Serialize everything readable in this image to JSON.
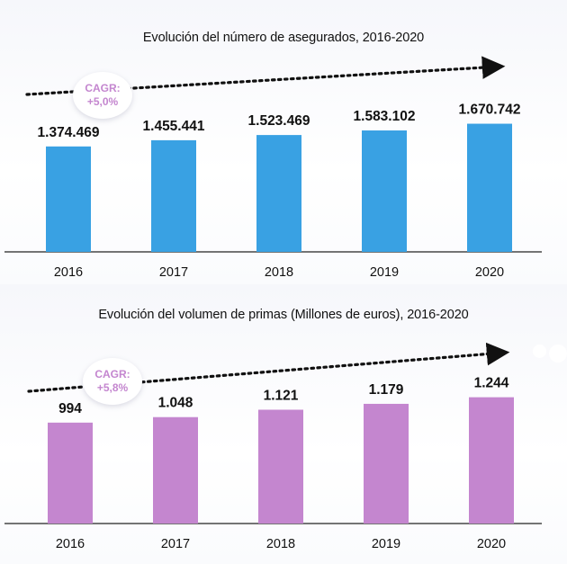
{
  "colors": {
    "insured_bar": "#39a1e3",
    "premium_bar": "#c486cf",
    "cagr_text": "#c486cf",
    "axis": "#222222"
  },
  "chart_data": [
    {
      "type": "bar",
      "title": "Evolución del número de asegurados, 2016-2020",
      "categories": [
        "2016",
        "2017",
        "2018",
        "2019",
        "2020"
      ],
      "values": [
        1374469,
        1455441,
        1523469,
        1583102,
        1670742
      ],
      "value_labels": [
        "1.374.469",
        "1.455.441",
        "1.523.469",
        "1.583.102",
        "1.670.742"
      ],
      "ylim": [
        0,
        1900000
      ],
      "grid": false,
      "annotation": {
        "label": "CAGR:",
        "value": "+5,0%"
      }
    },
    {
      "type": "bar",
      "title": "Evolución del volumen de primas (Millones de euros), 2016-2020",
      "categories": [
        "2016",
        "2017",
        "2018",
        "2019",
        "2020"
      ],
      "values": [
        994,
        1048,
        1121,
        1179,
        1244
      ],
      "value_labels": [
        "994",
        "1.048",
        "1.121",
        "1.179",
        "1.244"
      ],
      "ylim": [
        0,
        1400
      ],
      "grid": false,
      "annotation": {
        "label": "CAGR:",
        "value": "+5,8%"
      }
    }
  ]
}
